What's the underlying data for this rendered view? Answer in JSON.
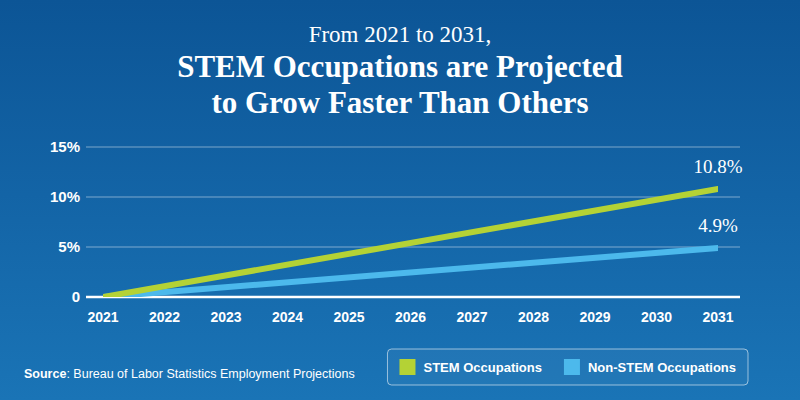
{
  "chart_data": {
    "type": "line",
    "subtitle": "From 2021 to 2031,",
    "title": "STEM Occupations are Projected\nto Grow Faster Than Others",
    "source": "Source: Bureau of Labor Statistics Employment Projections",
    "x": [
      2021,
      2031
    ],
    "xlim": [
      2021,
      2031
    ],
    "xticks": [
      2021,
      2022,
      2023,
      2024,
      2025,
      2026,
      2027,
      2028,
      2029,
      2030,
      2031
    ],
    "ylim": [
      0,
      15
    ],
    "yticks": [
      0,
      {
        "value": 5,
        "label": "5%"
      },
      {
        "value": 10,
        "label": "10%"
      },
      {
        "value": 15,
        "label": "15%"
      }
    ],
    "grid": true,
    "legend": "bottom-right",
    "data_labels": true,
    "series": [
      {
        "name": "STEM Occupations",
        "color": "#b4d235",
        "values": [
          0,
          10.8
        ],
        "value_labels": [
          null,
          "10.8%"
        ]
      },
      {
        "name": "Non-STEM Occupations",
        "color": "#4cb9ec",
        "values": [
          0,
          4.9
        ],
        "value_labels": [
          null,
          "4.9%"
        ]
      }
    ]
  }
}
